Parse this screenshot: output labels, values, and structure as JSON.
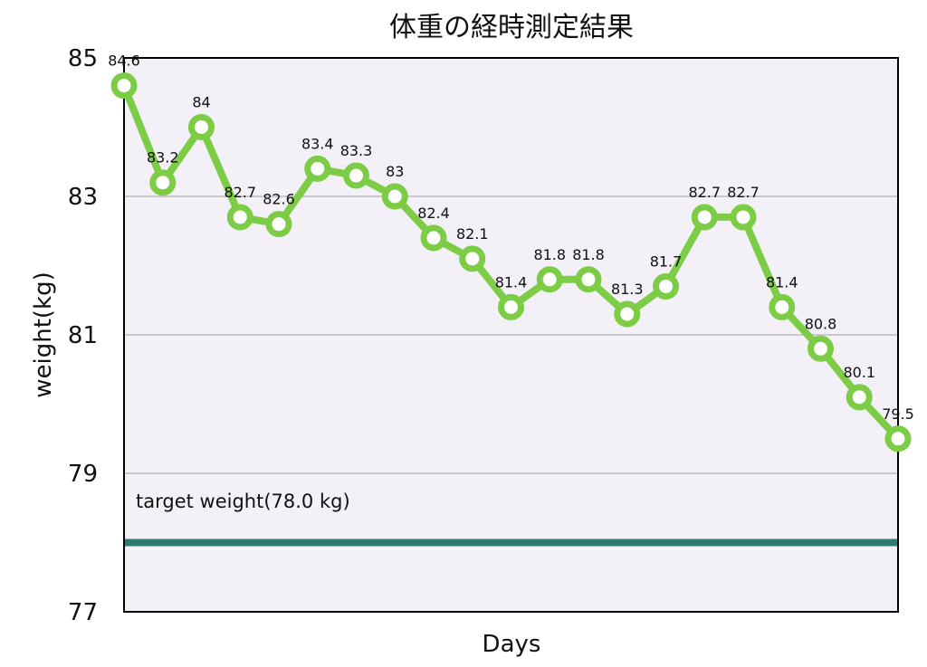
{
  "chart_data": {
    "type": "line",
    "title": "体重の経時測定結果",
    "xlabel": "Days",
    "ylabel": "weight(kg)",
    "ylim": [
      77,
      85
    ],
    "yticks": [
      "77",
      "79",
      "81",
      "83",
      "85"
    ],
    "grid": true,
    "series": [
      {
        "values": [
          84.6,
          83.2,
          84,
          82.7,
          82.6,
          83.4,
          83.3,
          83,
          82.4,
          82.1,
          81.4,
          81.8,
          81.8,
          81.3,
          81.7,
          82.7,
          82.7,
          81.4,
          80.8,
          80.1,
          79.5
        ],
        "labels": [
          "84.6",
          "83.2",
          "84",
          "82.7",
          "82.6",
          "83.4",
          "83.3",
          "83",
          "82.4",
          "82.1",
          "81.4",
          "81.8",
          "81.8",
          "81.3",
          "81.7",
          "82.7",
          "82.7",
          "81.4",
          "80.8",
          "80.1",
          "79.5"
        ]
      }
    ],
    "target": {
      "value": 78.0,
      "label": "target weight(78.0 kg)"
    },
    "colors": {
      "line": "#7ccd45",
      "target": "#2e7a6d",
      "plot_bg": "#f3f0f8",
      "grid": "#b9b9b9"
    }
  }
}
